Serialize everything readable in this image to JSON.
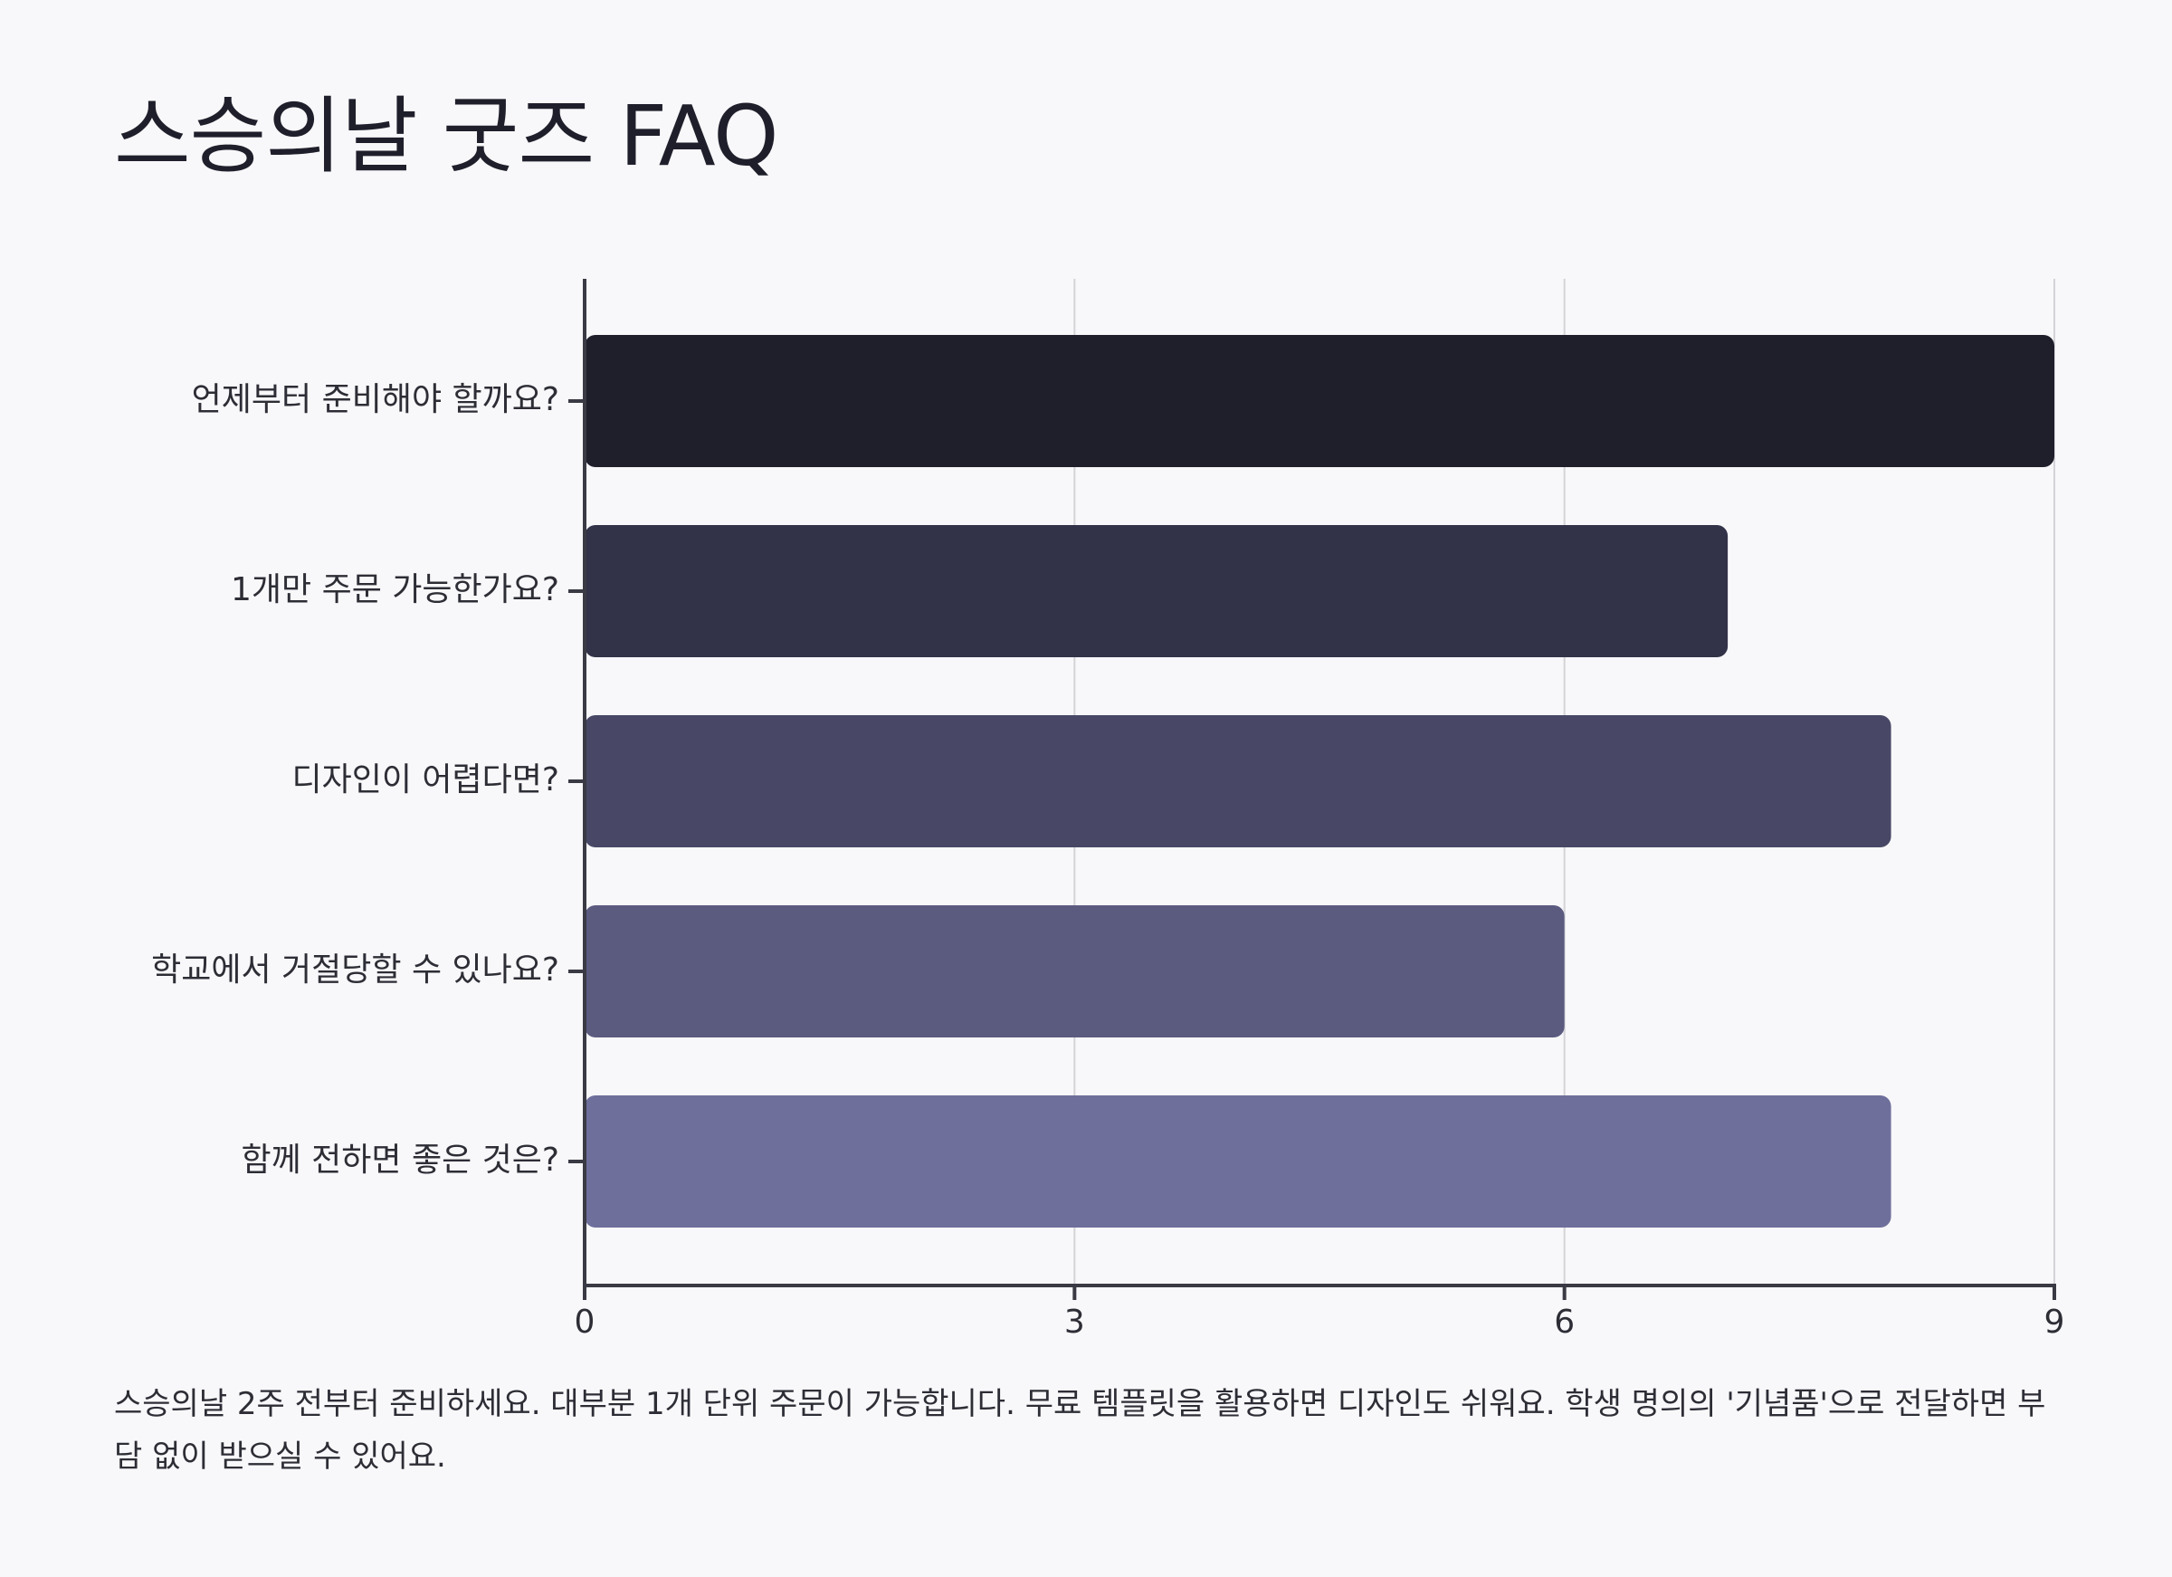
{
  "title": "스승의날 굿즈 FAQ",
  "caption": "스승의날 2주 전부터 준비하세요. 대부분 1개 단위 주문이 가능합니다. 무료 템플릿을 활용하면 디자인도 쉬워요. 학생 명의의 '기념품'으로 전달하면 부담 없이 받으실 수 있어요.",
  "chart_data": {
    "type": "bar",
    "orientation": "horizontal",
    "categories": [
      "언제부터 준비해야 할까요?",
      "1개만 주문 가능한가요?",
      "디자인이 어렵다면?",
      "학교에서 거절당할 수 있나요?",
      "함께 전하면 좋은 것은?"
    ],
    "values": [
      9,
      7,
      8,
      6,
      8
    ],
    "colors": [
      "#1f1f2c",
      "#323248",
      "#484866",
      "#5b5b80",
      "#6f6f9c"
    ],
    "xlim": [
      0,
      9
    ],
    "xticks": [
      0,
      3,
      6,
      9
    ],
    "xlabel": "",
    "ylabel": "",
    "grid": "vertical"
  }
}
